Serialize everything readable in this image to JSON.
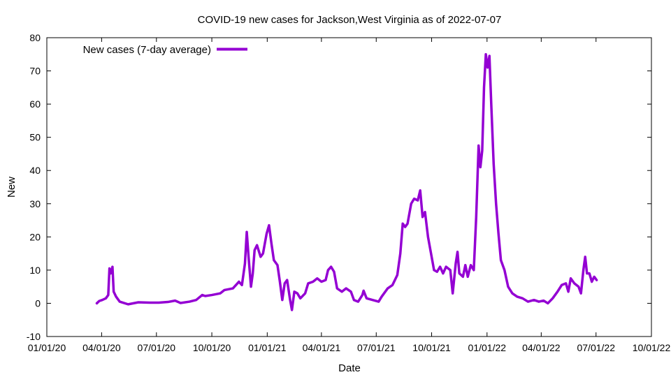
{
  "chart_data": {
    "type": "line",
    "title": "COVID-19 new cases for Jackson,West Virginia as of 2022-07-07",
    "xlabel": "Date",
    "ylabel": "New",
    "ylim": [
      -10,
      80
    ],
    "xlim": [
      "2020-01-01",
      "2022-10-01"
    ],
    "y_ticks": [
      -10,
      0,
      10,
      20,
      30,
      40,
      50,
      60,
      70,
      80
    ],
    "x_ticks": [
      {
        "date": "2020-01-01",
        "label": "01/01/20"
      },
      {
        "date": "2020-04-01",
        "label": "04/01/20"
      },
      {
        "date": "2020-07-01",
        "label": "07/01/20"
      },
      {
        "date": "2020-10-01",
        "label": "10/01/20"
      },
      {
        "date": "2021-01-01",
        "label": "01/01/21"
      },
      {
        "date": "2021-04-01",
        "label": "04/01/21"
      },
      {
        "date": "2021-07-01",
        "label": "07/01/21"
      },
      {
        "date": "2021-10-01",
        "label": "10/01/21"
      },
      {
        "date": "2022-01-01",
        "label": "01/01/22"
      },
      {
        "date": "2022-04-01",
        "label": "04/01/22"
      },
      {
        "date": "2022-07-01",
        "label": "07/01/22"
      },
      {
        "date": "2022-10-01",
        "label": "10/01/22"
      }
    ],
    "grid": false,
    "legend_position": "top-left",
    "series": [
      {
        "name": "New cases (7-day average)",
        "color": "#9400d3",
        "points": [
          [
            "2020-03-24",
            0.0
          ],
          [
            "2020-03-28",
            0.7
          ],
          [
            "2020-04-02",
            1.0
          ],
          [
            "2020-04-08",
            1.5
          ],
          [
            "2020-04-12",
            2.5
          ],
          [
            "2020-04-14",
            10.5
          ],
          [
            "2020-04-16",
            9.0
          ],
          [
            "2020-04-19",
            11.0
          ],
          [
            "2020-04-21",
            3.5
          ],
          [
            "2020-04-25",
            2.0
          ],
          [
            "2020-05-01",
            0.5
          ],
          [
            "2020-05-15",
            -0.3
          ],
          [
            "2020-06-01",
            0.3
          ],
          [
            "2020-06-20",
            0.2
          ],
          [
            "2020-07-05",
            0.2
          ],
          [
            "2020-07-20",
            0.4
          ],
          [
            "2020-08-01",
            0.8
          ],
          [
            "2020-08-10",
            0.1
          ],
          [
            "2020-08-25",
            0.5
          ],
          [
            "2020-09-05",
            1.0
          ],
          [
            "2020-09-15",
            2.5
          ],
          [
            "2020-09-20",
            2.2
          ],
          [
            "2020-10-01",
            2.5
          ],
          [
            "2020-10-15",
            3.0
          ],
          [
            "2020-10-22",
            4.0
          ],
          [
            "2020-11-05",
            4.5
          ],
          [
            "2020-11-15",
            6.5
          ],
          [
            "2020-11-20",
            5.5
          ],
          [
            "2020-11-25",
            12.0
          ],
          [
            "2020-11-28",
            21.5
          ],
          [
            "2020-12-01",
            14.0
          ],
          [
            "2020-12-05",
            5.0
          ],
          [
            "2020-12-08",
            9.0
          ],
          [
            "2020-12-11",
            16.0
          ],
          [
            "2020-12-15",
            17.5
          ],
          [
            "2020-12-21",
            14.0
          ],
          [
            "2020-12-25",
            15.0
          ],
          [
            "2020-12-31",
            21.0
          ],
          [
            "2021-01-04",
            23.5
          ],
          [
            "2021-01-08",
            18.0
          ],
          [
            "2021-01-12",
            13.0
          ],
          [
            "2021-01-18",
            11.5
          ],
          [
            "2021-01-22",
            6.5
          ],
          [
            "2021-01-26",
            1.0
          ],
          [
            "2021-01-30",
            6.0
          ],
          [
            "2021-02-03",
            7.0
          ],
          [
            "2021-02-08",
            1.0
          ],
          [
            "2021-02-11",
            -2.0
          ],
          [
            "2021-02-15",
            3.5
          ],
          [
            "2021-02-20",
            3.0
          ],
          [
            "2021-02-25",
            1.5
          ],
          [
            "2021-03-05",
            3.0
          ],
          [
            "2021-03-10",
            6.0
          ],
          [
            "2021-03-18",
            6.5
          ],
          [
            "2021-03-25",
            7.5
          ],
          [
            "2021-04-01",
            6.5
          ],
          [
            "2021-04-08",
            7.0
          ],
          [
            "2021-04-12",
            10.0
          ],
          [
            "2021-04-17",
            11.0
          ],
          [
            "2021-04-22",
            9.5
          ],
          [
            "2021-04-27",
            4.5
          ],
          [
            "2021-05-05",
            3.5
          ],
          [
            "2021-05-12",
            4.5
          ],
          [
            "2021-05-20",
            3.5
          ],
          [
            "2021-05-25",
            1.0
          ],
          [
            "2021-06-01",
            0.5
          ],
          [
            "2021-06-08",
            2.5
          ],
          [
            "2021-06-10",
            3.8
          ],
          [
            "2021-06-15",
            1.5
          ],
          [
            "2021-06-25",
            1.0
          ],
          [
            "2021-07-05",
            0.5
          ],
          [
            "2021-07-10",
            2.0
          ],
          [
            "2021-07-20",
            4.5
          ],
          [
            "2021-07-28",
            5.5
          ],
          [
            "2021-08-05",
            8.5
          ],
          [
            "2021-08-10",
            15.0
          ],
          [
            "2021-08-14",
            24.0
          ],
          [
            "2021-08-18",
            23.0
          ],
          [
            "2021-08-22",
            24.0
          ],
          [
            "2021-08-28",
            30.0
          ],
          [
            "2021-09-02",
            31.5
          ],
          [
            "2021-09-08",
            31.0
          ],
          [
            "2021-09-12",
            34.0
          ],
          [
            "2021-09-16",
            26.0
          ],
          [
            "2021-09-20",
            27.5
          ],
          [
            "2021-09-25",
            20.0
          ],
          [
            "2021-09-30",
            15.0
          ],
          [
            "2021-10-05",
            10.0
          ],
          [
            "2021-10-10",
            9.5
          ],
          [
            "2021-10-15",
            11.0
          ],
          [
            "2021-10-20",
            9.0
          ],
          [
            "2021-10-25",
            11.0
          ],
          [
            "2021-11-01",
            10.0
          ],
          [
            "2021-11-05",
            3.0
          ],
          [
            "2021-11-10",
            12.0
          ],
          [
            "2021-11-13",
            15.5
          ],
          [
            "2021-11-16",
            9.0
          ],
          [
            "2021-11-22",
            8.0
          ],
          [
            "2021-11-26",
            11.5
          ],
          [
            "2021-11-30",
            8.0
          ],
          [
            "2021-12-05",
            11.5
          ],
          [
            "2021-12-10",
            10.0
          ],
          [
            "2021-12-14",
            26.0
          ],
          [
            "2021-12-18",
            47.5
          ],
          [
            "2021-12-21",
            41.0
          ],
          [
            "2021-12-24",
            46.0
          ],
          [
            "2021-12-27",
            65.0
          ],
          [
            "2021-12-30",
            75.0
          ],
          [
            "2022-01-02",
            71.0
          ],
          [
            "2022-01-05",
            74.5
          ],
          [
            "2022-01-08",
            60.0
          ],
          [
            "2022-01-12",
            42.0
          ],
          [
            "2022-01-16",
            30.0
          ],
          [
            "2022-01-20",
            21.0
          ],
          [
            "2022-01-24",
            13.0
          ],
          [
            "2022-01-30",
            10.0
          ],
          [
            "2022-02-05",
            5.0
          ],
          [
            "2022-02-12",
            3.0
          ],
          [
            "2022-02-20",
            2.0
          ],
          [
            "2022-03-01",
            1.5
          ],
          [
            "2022-03-10",
            0.5
          ],
          [
            "2022-03-20",
            1.0
          ],
          [
            "2022-03-28",
            0.5
          ],
          [
            "2022-04-05",
            0.8
          ],
          [
            "2022-04-12",
            0.0
          ],
          [
            "2022-04-20",
            1.5
          ],
          [
            "2022-04-28",
            3.5
          ],
          [
            "2022-05-05",
            5.5
          ],
          [
            "2022-05-12",
            6.0
          ],
          [
            "2022-05-16",
            3.5
          ],
          [
            "2022-05-20",
            7.5
          ],
          [
            "2022-05-26",
            6.0
          ],
          [
            "2022-06-02",
            5.0
          ],
          [
            "2022-06-06",
            3.0
          ],
          [
            "2022-06-10",
            10.0
          ],
          [
            "2022-06-13",
            14.0
          ],
          [
            "2022-06-16",
            9.0
          ],
          [
            "2022-06-20",
            9.0
          ],
          [
            "2022-06-24",
            6.5
          ],
          [
            "2022-06-28",
            8.0
          ],
          [
            "2022-07-02",
            7.0
          ]
        ]
      }
    ]
  }
}
